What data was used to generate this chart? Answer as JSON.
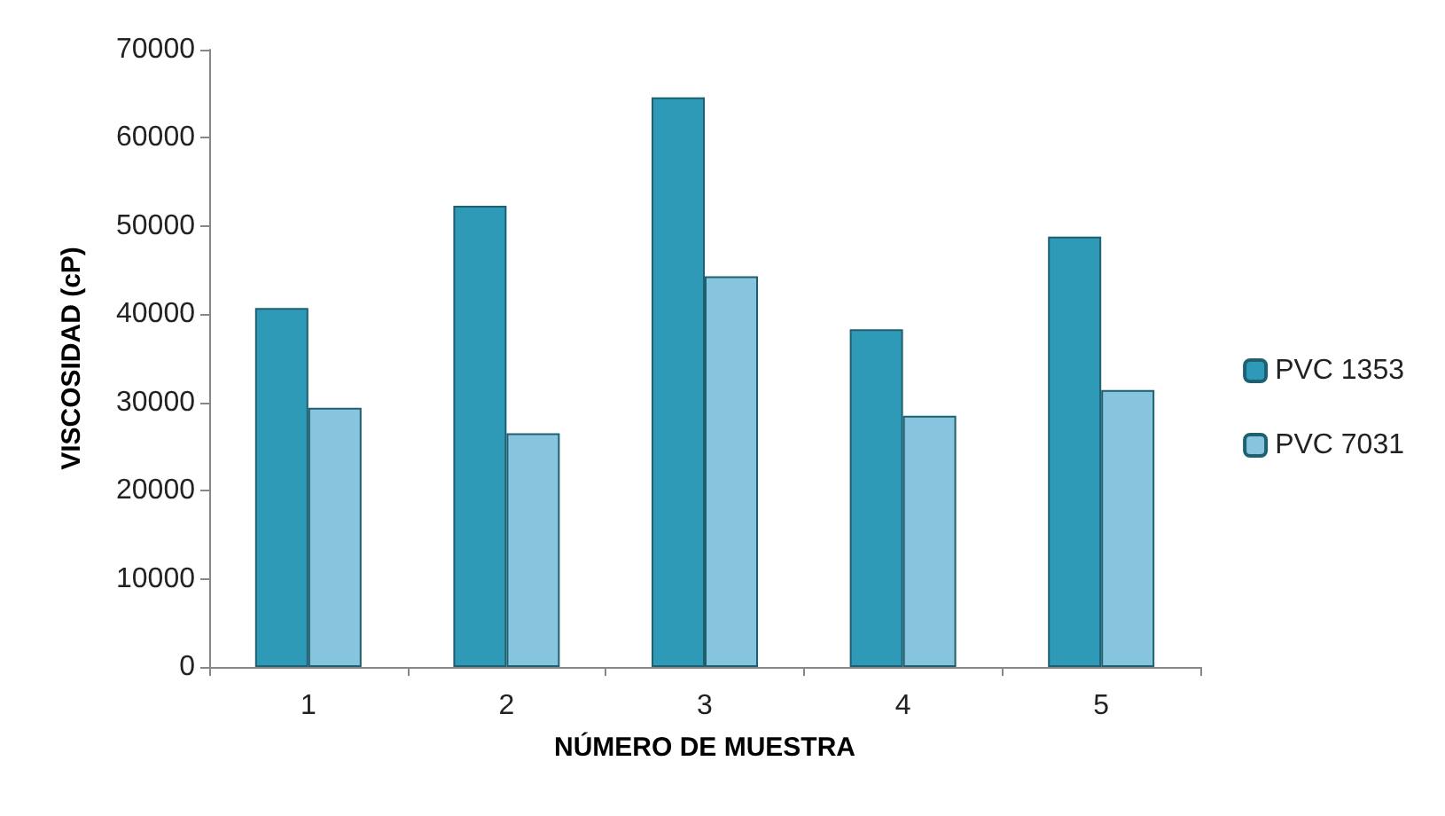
{
  "chart_data": {
    "type": "bar",
    "xlabel": "NÚMERO DE MUESTRA",
    "ylabel": "VISCOSIDAD (cP)",
    "categories": [
      "1",
      "2",
      "3",
      "4",
      "5"
    ],
    "series": [
      {
        "name": "PVC 1353",
        "color": "#2f9ab8",
        "values": [
          40700,
          52300,
          64600,
          38300,
          48800
        ]
      },
      {
        "name": "PVC 7031",
        "color": "#86c5dd",
        "values": [
          29400,
          26500,
          44300,
          28500,
          31400
        ]
      }
    ],
    "ylim": [
      0,
      70000
    ],
    "yticks": [
      0,
      10000,
      20000,
      30000,
      40000,
      50000,
      60000,
      70000
    ],
    "grid": false,
    "legend": "right"
  }
}
